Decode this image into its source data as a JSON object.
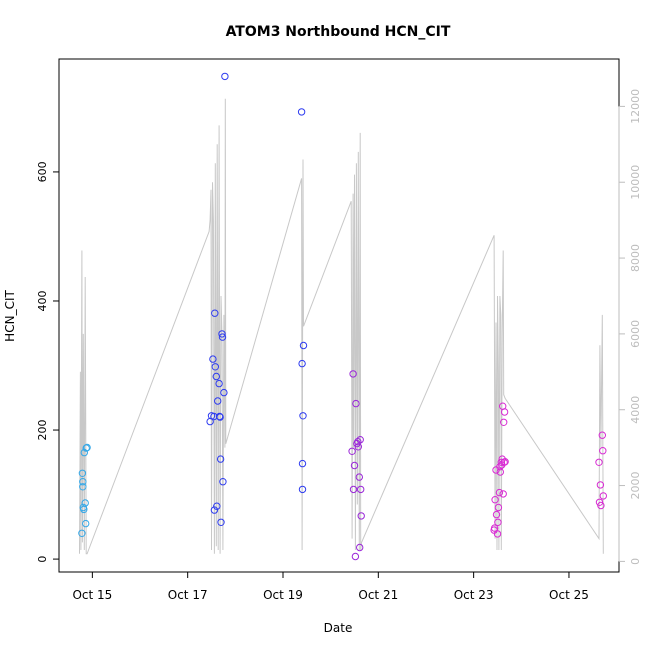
{
  "chart_data": {
    "type": "scatter",
    "title": "ATOM3 Northbound HCN_CIT",
    "xlabel": "Date",
    "ylabel": "HCN_CIT",
    "x_tick_labels": [
      "Oct 15",
      "Oct 17",
      "Oct 19",
      "Oct 21",
      "Oct 23",
      "Oct 25"
    ],
    "x_tick_values": [
      15,
      17,
      19,
      21,
      23,
      25
    ],
    "xlim": [
      14.3,
      26.05
    ],
    "ylim": [
      -20,
      775
    ],
    "y_ticks": [
      0,
      200,
      400,
      600
    ],
    "y2_ticks": [
      0,
      2000,
      4000,
      6000,
      8000,
      10000,
      12000
    ],
    "y2lim": [
      -280,
      13250
    ],
    "grid": false,
    "colors": {
      "cyan": "#35a8e8",
      "blue": "#2e3cf0",
      "purple": "#9b27d9",
      "magenta": "#d82bd3",
      "altitude_line": "#c8c8c8",
      "axis": "#000000",
      "right_axis": "#bdbdbd"
    },
    "series": [
      {
        "color_key": "cyan",
        "points": [
          [
            14.78,
            40
          ],
          [
            14.79,
            133
          ],
          [
            14.8,
            120
          ],
          [
            14.8,
            112
          ],
          [
            14.83,
            165
          ],
          [
            14.81,
            80
          ],
          [
            14.82,
            77
          ],
          [
            14.85,
            87
          ],
          [
            14.86,
            55
          ],
          [
            14.87,
            172
          ],
          [
            14.89,
            173
          ]
        ]
      },
      {
        "color_key": "blue",
        "points": [
          [
            17.47,
            213
          ],
          [
            17.5,
            222
          ],
          [
            17.53,
            310
          ],
          [
            17.55,
            221
          ],
          [
            17.57,
            381
          ],
          [
            17.56,
            76
          ],
          [
            17.58,
            298
          ],
          [
            17.6,
            283
          ],
          [
            17.61,
            82
          ],
          [
            17.63,
            245
          ],
          [
            17.66,
            272
          ],
          [
            17.67,
            221
          ],
          [
            17.68,
            220
          ],
          [
            17.69,
            155
          ],
          [
            17.7,
            57
          ],
          [
            17.72,
            349
          ],
          [
            17.73,
            344
          ],
          [
            17.74,
            120
          ],
          [
            17.76,
            258
          ],
          [
            17.78,
            748
          ],
          [
            19.39,
            693
          ],
          [
            19.4,
            303
          ],
          [
            19.41,
            148
          ],
          [
            19.41,
            108
          ],
          [
            19.42,
            222
          ],
          [
            19.43,
            331
          ]
        ]
      },
      {
        "color_key": "purple",
        "points": [
          [
            20.45,
            167
          ],
          [
            20.47,
            287
          ],
          [
            20.48,
            108
          ],
          [
            20.5,
            145
          ],
          [
            20.52,
            4
          ],
          [
            20.53,
            241
          ],
          [
            20.55,
            179
          ],
          [
            20.57,
            182
          ],
          [
            20.58,
            174
          ],
          [
            20.6,
            127
          ],
          [
            20.61,
            18
          ],
          [
            20.62,
            185
          ],
          [
            20.63,
            108
          ],
          [
            20.64,
            67
          ]
        ]
      },
      {
        "color_key": "magenta",
        "points": [
          [
            23.43,
            45
          ],
          [
            23.44,
            48
          ],
          [
            23.45,
            92
          ],
          [
            23.47,
            138
          ],
          [
            23.48,
            69
          ],
          [
            23.5,
            39
          ],
          [
            23.51,
            57
          ],
          [
            23.52,
            80
          ],
          [
            23.54,
            103
          ],
          [
            23.55,
            143
          ],
          [
            23.56,
            135
          ],
          [
            23.58,
            150
          ],
          [
            23.59,
            146
          ],
          [
            23.6,
            155
          ],
          [
            23.61,
            237
          ],
          [
            23.62,
            101
          ],
          [
            23.63,
            212
          ],
          [
            23.64,
            150
          ],
          [
            23.65,
            228
          ],
          [
            23.66,
            151
          ],
          [
            25.63,
            150
          ],
          [
            25.64,
            88
          ],
          [
            25.66,
            115
          ],
          [
            25.67,
            83
          ],
          [
            25.7,
            192
          ],
          [
            25.71,
            168
          ],
          [
            25.72,
            98
          ]
        ]
      }
    ],
    "altitude_series": {
      "axis": "right",
      "points": [
        [
          14.73,
          200
        ],
        [
          14.75,
          5000
        ],
        [
          14.76,
          300
        ],
        [
          14.78,
          8200
        ],
        [
          14.79,
          500
        ],
        [
          14.81,
          6000
        ],
        [
          14.83,
          300
        ],
        [
          14.85,
          7500
        ],
        [
          14.87,
          200
        ],
        [
          14.89,
          200
        ],
        [
          17.45,
          8700
        ],
        [
          17.47,
          9000
        ],
        [
          17.49,
          9800
        ],
        [
          17.5,
          300
        ],
        [
          17.52,
          10000
        ],
        [
          17.54,
          9000
        ],
        [
          17.56,
          200
        ],
        [
          17.58,
          10500
        ],
        [
          17.6,
          400
        ],
        [
          17.62,
          11000
        ],
        [
          17.64,
          300
        ],
        [
          17.66,
          11500
        ],
        [
          17.68,
          200
        ],
        [
          17.7,
          7000
        ],
        [
          17.72,
          6000
        ],
        [
          17.74,
          300
        ],
        [
          17.76,
          6500
        ],
        [
          17.78,
          3000
        ],
        [
          17.79,
          12200
        ],
        [
          17.8,
          3100
        ],
        [
          19.39,
          10100
        ],
        [
          19.4,
          300
        ],
        [
          19.42,
          10600
        ],
        [
          19.43,
          6200
        ],
        [
          20.43,
          9500
        ],
        [
          20.45,
          600
        ],
        [
          20.47,
          9700
        ],
        [
          20.48,
          3000
        ],
        [
          20.5,
          10200
        ],
        [
          20.52,
          300
        ],
        [
          20.54,
          10500
        ],
        [
          20.56,
          1500
        ],
        [
          20.58,
          10800
        ],
        [
          20.6,
          300
        ],
        [
          20.62,
          11300
        ],
        [
          20.63,
          300
        ],
        [
          20.65,
          500
        ],
        [
          23.43,
          8600
        ],
        [
          23.45,
          600
        ],
        [
          23.47,
          6300
        ],
        [
          23.49,
          300
        ],
        [
          23.5,
          7000
        ],
        [
          23.52,
          5000
        ],
        [
          23.53,
          300
        ],
        [
          23.55,
          7000
        ],
        [
          23.57,
          6500
        ],
        [
          23.58,
          300
        ],
        [
          23.6,
          6000
        ],
        [
          23.62,
          8200
        ],
        [
          23.63,
          4400
        ],
        [
          23.66,
          4300
        ],
        [
          25.63,
          600
        ],
        [
          25.65,
          5700
        ],
        [
          25.67,
          3000
        ],
        [
          25.7,
          6500
        ],
        [
          25.72,
          200
        ]
      ]
    }
  }
}
